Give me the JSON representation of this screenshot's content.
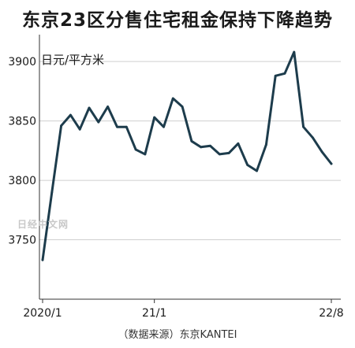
{
  "title": "东京23区分售住宅租金保持下降趋势",
  "source": "（数据来源）东京KANTEI",
  "watermark": "日经中文网",
  "colors": {
    "line": "#1d3c4c",
    "grid": "#cfcfcf",
    "axis": "#333333"
  },
  "chart_data": {
    "type": "line",
    "title": "东京23区分售住宅租金保持下降趋势",
    "unit_label": "日元/平方米",
    "ylim": [
      3700,
      3920
    ],
    "yticks": [
      3750,
      3800,
      3850,
      3900
    ],
    "grid": "horizontal",
    "xtick_labels": [
      {
        "label": "2020/1",
        "index": 0
      },
      {
        "label": "21/1",
        "index": 12
      },
      {
        "label": "22/8",
        "index": 31
      }
    ],
    "series": [
      {
        "x": [
          "2020/1",
          "2020/2",
          "2020/3",
          "2020/4",
          "2020/5",
          "2020/6",
          "2020/7",
          "2020/8",
          "2020/9",
          "2020/10",
          "2020/11",
          "2020/12",
          "2021/1",
          "2021/2",
          "2021/3",
          "2021/4",
          "2021/5",
          "2021/6",
          "2021/7",
          "2021/8",
          "2021/9",
          "2021/10",
          "2021/11",
          "2021/12",
          "2022/1",
          "2022/2",
          "2022/3",
          "2022/4",
          "2022/5",
          "2022/6",
          "2022/7",
          "2022/8"
        ],
        "values": [
          3733,
          3790,
          3846,
          3855,
          3843,
          3861,
          3849,
          3862,
          3845,
          3845,
          3826,
          3822,
          3853,
          3845,
          3869,
          3862,
          3833,
          3828,
          3829,
          3822,
          3823,
          3831,
          3813,
          3808,
          3830,
          3888,
          3890,
          3908,
          3845,
          3836,
          3824,
          3814
        ]
      }
    ]
  }
}
